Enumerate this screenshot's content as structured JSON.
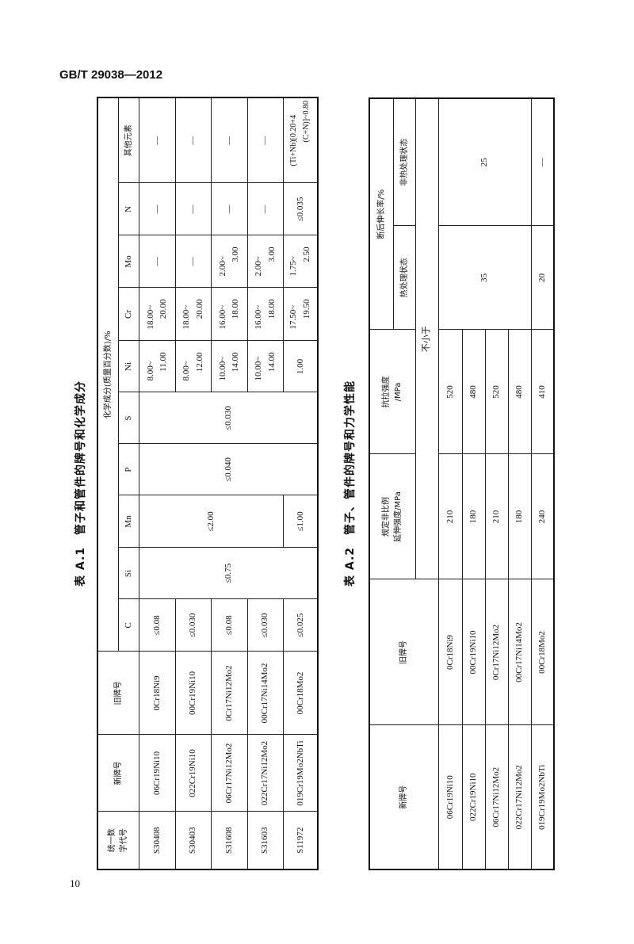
{
  "header": {
    "standard_no": "GB/T 29038—2012"
  },
  "footer": {
    "page_number": "10"
  },
  "table_a1": {
    "caption": "表 A.1　管子和管件的牌号和化学成分",
    "headers": {
      "code": [
        "统一数",
        "字代号"
      ],
      "new_grade": "新牌号",
      "old_grade": "旧牌号",
      "composition_group": "化学成分(质量百分数)/%",
      "elements": [
        "C",
        "Si",
        "Mn",
        "P",
        "S",
        "Ni",
        "Cr",
        "Mo",
        "N",
        "其他元素"
      ]
    },
    "rows": [
      {
        "code": "S30408",
        "new": "06Cr19Ni10",
        "old": "0Cr18Ni9",
        "c": "≤0.08",
        "ni": [
          "8.00~",
          "11.00"
        ],
        "cr": [
          "18.00~",
          "20.00"
        ],
        "mo": "—",
        "n": "—",
        "other": "—"
      },
      {
        "code": "S30403",
        "new": "022Cr19Ni10",
        "old": "00Cr19Ni10",
        "c": "≤0.030",
        "ni": [
          "8.00~",
          "12.00"
        ],
        "cr": [
          "18.00~",
          "20.00"
        ],
        "mo": "—",
        "n": "—",
        "other": "—"
      },
      {
        "code": "S31608",
        "new": "06Cr17Ni12Mo2",
        "old": "0Cr17Ni12Mo2",
        "c": "≤0.08",
        "ni": [
          "10.00~",
          "14.00"
        ],
        "cr": [
          "16.00~",
          "18.00"
        ],
        "mo": [
          "2.00~",
          "3.00"
        ],
        "n": "—",
        "other": "—"
      },
      {
        "code": "S31603",
        "new": "022Cr17Ni12Mo2",
        "old": "00Cr17Ni14Mo2",
        "c": "≤0.030",
        "ni": [
          "10.00~",
          "14.00"
        ],
        "cr": [
          "16.00~",
          "18.00"
        ],
        "mo": [
          "2.00~",
          "3.00"
        ],
        "n": "—",
        "other": "—"
      },
      {
        "code": "S11972",
        "new": "019Cr19Mo2NbTi",
        "old": "00Cr18Mo2",
        "c": "≤0.025",
        "ni": "1.00",
        "cr": [
          "17.50~",
          "19.50"
        ],
        "mo": [
          "1.75~",
          "2.50"
        ],
        "n": "≤0.035",
        "other": [
          "(Ti+Nb)[0.20+4",
          "(C+N)]~0.80"
        ]
      }
    ],
    "merged": {
      "si": "≤0.75",
      "mn_rows_1_4": "≤2.00",
      "mn_row_5": "≤1.00",
      "p": "≤0.040",
      "s": "≤0.030"
    }
  },
  "table_a2": {
    "caption": "表 A.2　管子、管件的牌号和力学性能",
    "headers": {
      "new_grade": "新牌号",
      "old_grade": "旧牌号",
      "proof_strength": [
        "规定非比例",
        "延伸强度/MPa"
      ],
      "tensile_strength": [
        "抗拉强度",
        "/MPa"
      ],
      "elongation": "断后伸长率/%",
      "heat_treated": "热处理状态",
      "non_heat_treated": "非热处理状态",
      "min_note": "不小于"
    },
    "rows": [
      {
        "new": "06Cr19Ni10",
        "old": "0Cr18Ni9",
        "proof": "210",
        "tensile": "520"
      },
      {
        "new": "022Cr19Ni10",
        "old": "00Cr19Ni10",
        "proof": "180",
        "tensile": "480"
      },
      {
        "new": "06Cr17Ni12Mo2",
        "old": "0Cr17Ni12Mo2",
        "proof": "210",
        "tensile": "520"
      },
      {
        "new": "022Cr17Ni12Mo2",
        "old": "00Cr17Ni14Mo2",
        "proof": "180",
        "tensile": "480"
      },
      {
        "new": "019Cr19Mo2NbTi",
        "old": "00Cr18Mo2",
        "proof": "240",
        "tensile": "410"
      }
    ],
    "elongation_merged": {
      "heat_rows_1_4": "35",
      "non_heat_rows_1_4": "25",
      "heat_row_5": "20",
      "non_heat_row_5": "—"
    }
  }
}
